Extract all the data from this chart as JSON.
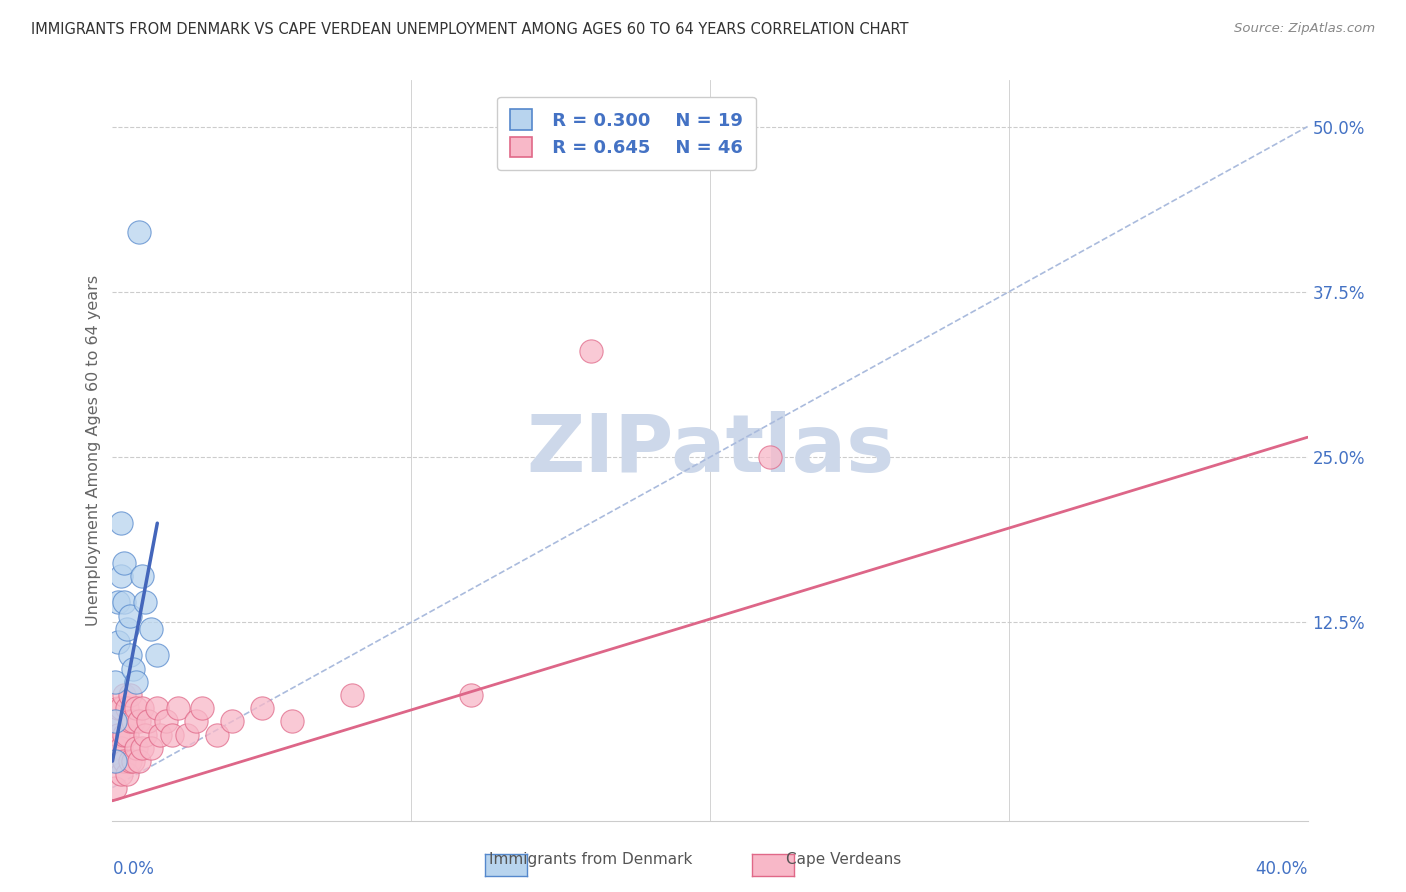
{
  "title": "IMMIGRANTS FROM DENMARK VS CAPE VERDEAN UNEMPLOYMENT AMONG AGES 60 TO 64 YEARS CORRELATION CHART",
  "source": "Source: ZipAtlas.com",
  "ylabel": "Unemployment Among Ages 60 to 64 years",
  "xmin": 0.0,
  "xmax": 0.4,
  "ymin": -0.025,
  "ymax": 0.535,
  "ytick_values": [
    0.125,
    0.25,
    0.375,
    0.5
  ],
  "ytick_labels": [
    "12.5%",
    "25.0%",
    "37.5%",
    "50.0%"
  ],
  "legend_r1": "R = 0.300",
  "legend_n1": "N = 19",
  "legend_r2": "R = 0.645",
  "legend_n2": "N = 46",
  "color_blue_fill": "#b8d4ee",
  "color_blue_edge": "#5588cc",
  "color_pink_fill": "#f8b8c8",
  "color_pink_edge": "#e06888",
  "color_blue_line": "#4466bb",
  "color_pink_line": "#dd6688",
  "color_grid": "#cccccc",
  "color_diag": "#aabbdd",
  "watermark_color": "#cdd8ea",
  "dk_x": [
    0.001,
    0.001,
    0.001,
    0.002,
    0.002,
    0.003,
    0.003,
    0.004,
    0.004,
    0.005,
    0.006,
    0.006,
    0.007,
    0.008,
    0.009,
    0.01,
    0.011,
    0.013,
    0.015
  ],
  "dk_y": [
    0.02,
    0.05,
    0.08,
    0.11,
    0.14,
    0.16,
    0.2,
    0.17,
    0.14,
    0.12,
    0.1,
    0.13,
    0.09,
    0.08,
    0.42,
    0.16,
    0.14,
    0.12,
    0.1
  ],
  "cv_x": [
    0.0005,
    0.001,
    0.001,
    0.001,
    0.002,
    0.002,
    0.002,
    0.003,
    0.003,
    0.003,
    0.004,
    0.004,
    0.004,
    0.005,
    0.005,
    0.005,
    0.006,
    0.006,
    0.006,
    0.007,
    0.007,
    0.008,
    0.008,
    0.009,
    0.009,
    0.01,
    0.01,
    0.011,
    0.012,
    0.013,
    0.015,
    0.016,
    0.018,
    0.02,
    0.022,
    0.025,
    0.028,
    0.03,
    0.035,
    0.04,
    0.05,
    0.06,
    0.08,
    0.12,
    0.16,
    0.22
  ],
  "cv_y": [
    0.02,
    0.0,
    0.03,
    0.05,
    0.02,
    0.04,
    0.06,
    0.01,
    0.03,
    0.06,
    0.02,
    0.04,
    0.07,
    0.01,
    0.04,
    0.06,
    0.02,
    0.05,
    0.07,
    0.02,
    0.05,
    0.03,
    0.06,
    0.02,
    0.05,
    0.03,
    0.06,
    0.04,
    0.05,
    0.03,
    0.06,
    0.04,
    0.05,
    0.04,
    0.06,
    0.04,
    0.05,
    0.06,
    0.04,
    0.05,
    0.06,
    0.05,
    0.07,
    0.07,
    0.33,
    0.25
  ],
  "dk_trend_x": [
    0.0,
    0.015
  ],
  "dk_trend_y": [
    0.02,
    0.2
  ],
  "cv_trend_x": [
    0.0,
    0.4
  ],
  "cv_trend_y": [
    -0.01,
    0.265
  ]
}
